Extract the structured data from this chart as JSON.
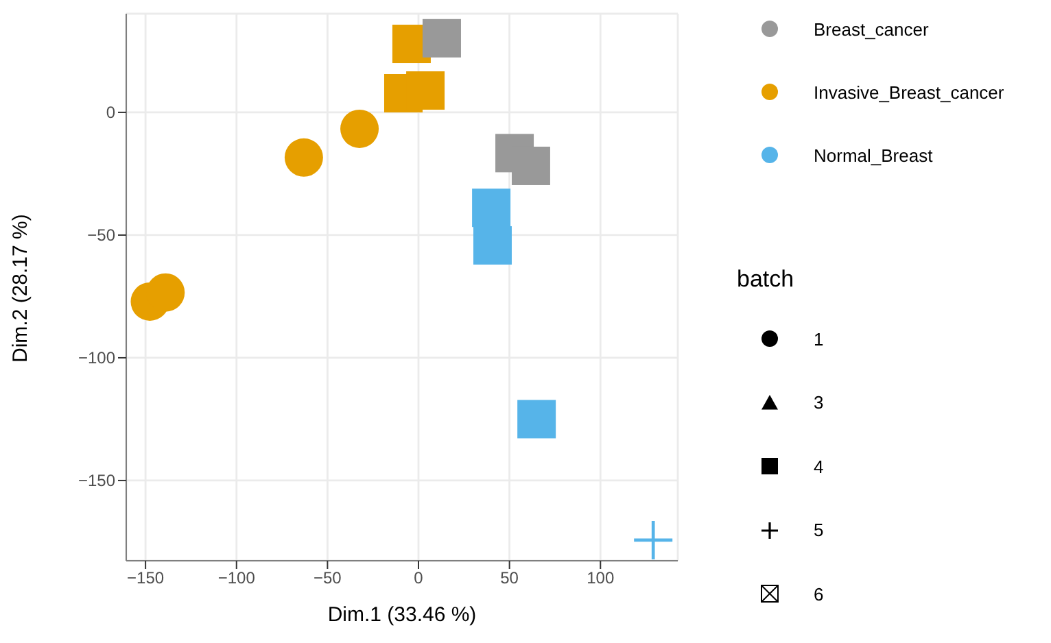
{
  "chart_data": {
    "type": "scatter",
    "xlabel": "Dim.1 (33.46 %)",
    "ylabel": "Dim.2 (28.17 %)",
    "legend_title": "batch",
    "xlim": [
      -160.6,
      142.5
    ],
    "ylim": [
      -182.7,
      40.2
    ],
    "xticks": [
      -150,
      -100,
      -50,
      0,
      50,
      100
    ],
    "yticks": [
      -150,
      -100,
      -50,
      0
    ],
    "grid": true,
    "legend": "right",
    "series": [
      {
        "name": "Breast_cancer",
        "color": "#999999",
        "marker": "square",
        "x": [
          52.8,
          61.8,
          12.8
        ],
        "values": [
          -16.6,
          -21.8,
          30.2
        ]
      },
      {
        "name": "Invasive_Breast_cancer",
        "color": "#e69f00",
        "marker": "circle",
        "x": [
          -63,
          -32.4,
          -147.6,
          -139
        ],
        "values": [
          -18.4,
          -6.7,
          -77.1,
          -73.4
        ]
      },
      {
        "color": "#e69f00",
        "marker": "square",
        "x": [
          -8.3,
          3.8,
          -3.8
        ],
        "values": [
          7.8,
          8.9,
          27.9
        ]
      },
      {
        "name": "Normal_Breast",
        "color": "#56b4e9",
        "marker": "square",
        "x": [
          40,
          40.7,
          64.9
        ],
        "values": [
          -38.9,
          -54.2,
          -125
        ]
      },
      {
        "color": "#56b4e9",
        "marker": "cross",
        "x": [
          129
        ],
        "values": [
          -174.3
        ]
      }
    ],
    "annotations": [
      "1",
      "3",
      "4",
      "5",
      "6"
    ]
  }
}
